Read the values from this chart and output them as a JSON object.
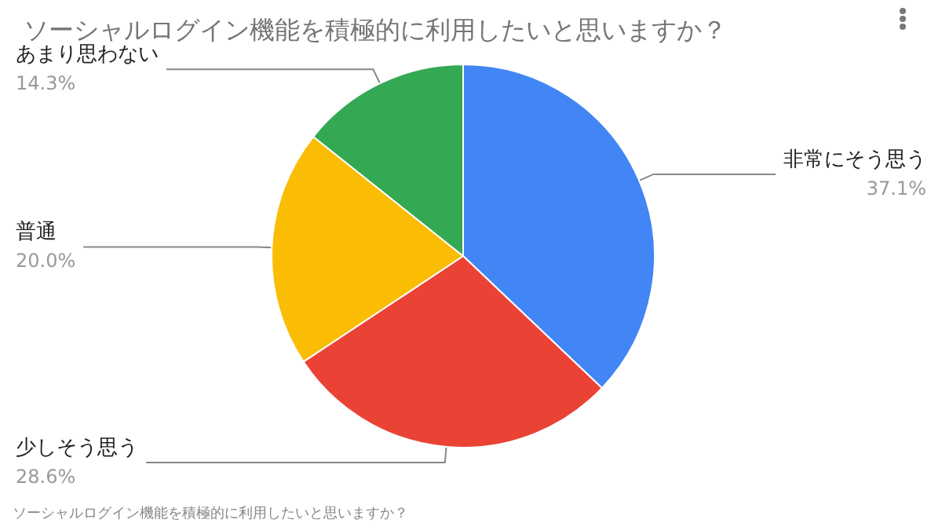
{
  "chart_data": {
    "type": "pie",
    "title": "ソーシャルログイン機能を積極的に利用したいと思いますか？",
    "categories": [
      "非常にそう思う",
      "少しそう思う",
      "普通",
      "あまり思わない"
    ],
    "values": [
      37.1,
      28.6,
      20.0,
      14.3
    ],
    "colors": [
      "#4285f4",
      "#ea4335",
      "#fbbc04",
      "#34a853"
    ],
    "value_labels": [
      "37.1%",
      "28.6%",
      "20.0%",
      "14.3%"
    ],
    "annotations": [
      "ソーシャルログイン機能を積極的に利用したいと思いますか？"
    ],
    "legend": false
  }
}
